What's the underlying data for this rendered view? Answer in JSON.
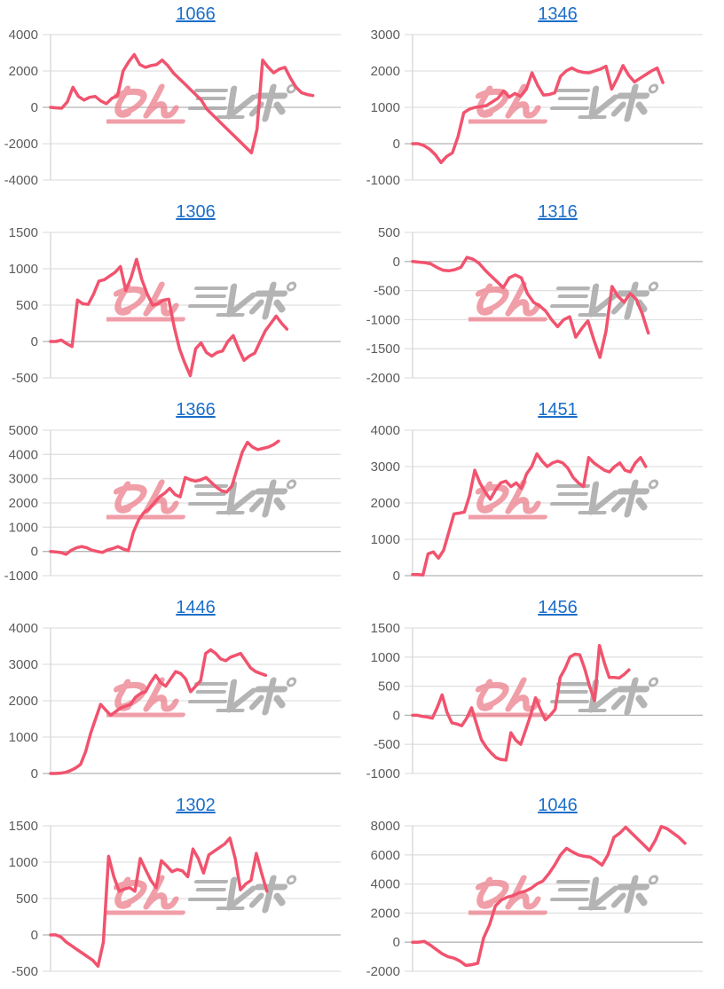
{
  "page": {
    "background": "#ffffff"
  },
  "watermark": {
    "pink_text": "みん",
    "gray_text": "レポ",
    "pink_color": "#ec8490",
    "gray_color": "#a8a8a8"
  },
  "colors": {
    "series_line": "#f1536e",
    "gridline": "#e0e0e0",
    "zero_line": "#b5b5b5",
    "y_axis_line": "#d6d6d6",
    "tick_label": "#5c5c5c",
    "title_link": "#1b6ec9"
  },
  "chart_data": [
    {
      "type": "line",
      "title": "1066",
      "ylabel": "",
      "ylim": [
        -4000,
        4000
      ],
      "yticks": [
        4000,
        2000,
        0,
        -2000,
        -4000
      ],
      "grid": true,
      "legend": "none",
      "x_count": 53,
      "values": [
        0,
        -30,
        -50,
        300,
        1100,
        600,
        400,
        550,
        600,
        350,
        200,
        500,
        650,
        2000,
        2500,
        2900,
        2350,
        2200,
        2300,
        2350,
        2600,
        2300,
        1900,
        1600,
        1300,
        1000,
        700,
        400,
        -100,
        -400,
        -700,
        -1000,
        -1300,
        -1600,
        -1900,
        -2200,
        -2500,
        -1200,
        2600,
        2200,
        1900,
        2100,
        2200,
        1600,
        1100,
        800,
        700,
        650
      ]
    },
    {
      "type": "line",
      "title": "1346",
      "ylabel": "",
      "ylim": [
        -1000,
        3000
      ],
      "yticks": [
        3000,
        2000,
        1000,
        0,
        -1000
      ],
      "grid": true,
      "legend": "none",
      "x_count": 52,
      "values": [
        0,
        0,
        -50,
        -150,
        -300,
        -520,
        -350,
        -250,
        200,
        850,
        950,
        1000,
        1020,
        1050,
        1150,
        1250,
        1450,
        1280,
        1380,
        1300,
        1500,
        1950,
        1600,
        1340,
        1350,
        1400,
        1850,
        2000,
        2080,
        2000,
        1960,
        1950,
        2000,
        2050,
        2130,
        1500,
        1800,
        2150,
        1880,
        1700,
        1800,
        1900,
        2000,
        2080,
        1680
      ]
    },
    {
      "type": "line",
      "title": "1306",
      "ylabel": "",
      "ylim": [
        -500,
        1500
      ],
      "yticks": [
        1500,
        1000,
        500,
        0,
        -500
      ],
      "grid": true,
      "legend": "none",
      "x_count": 55,
      "values": [
        0,
        0,
        20,
        -30,
        -70,
        570,
        520,
        510,
        650,
        830,
        850,
        900,
        950,
        1030,
        700,
        880,
        1130,
        850,
        650,
        500,
        520,
        570,
        580,
        200,
        -100,
        -300,
        -470,
        -100,
        -20,
        -150,
        -200,
        -150,
        -130,
        0,
        80,
        -100,
        -260,
        -200,
        -160,
        0,
        150,
        250,
        350,
        250,
        170
      ]
    },
    {
      "type": "line",
      "title": "1316",
      "ylabel": "",
      "ylim": [
        -2000,
        500
      ],
      "yticks": [
        500,
        0,
        -500,
        -1000,
        -1500,
        -2000
      ],
      "grid": true,
      "legend": "none",
      "x_count": 49,
      "values": [
        0,
        -10,
        -20,
        -40,
        -100,
        -150,
        -160,
        -140,
        -100,
        70,
        40,
        -30,
        -150,
        -250,
        -350,
        -450,
        -280,
        -230,
        -280,
        -550,
        -700,
        -760,
        -850,
        -1000,
        -1120,
        -1000,
        -950,
        -1300,
        -1150,
        -1020,
        -1350,
        -1650,
        -1200,
        -430,
        -600,
        -700,
        -550,
        -650,
        -900,
        -1230
      ]
    },
    {
      "type": "line",
      "title": "1366",
      "ylabel": "",
      "ylim": [
        -1000,
        5000
      ],
      "yticks": [
        5000,
        4000,
        3000,
        2000,
        1000,
        0,
        -1000
      ],
      "grid": true,
      "legend": "none",
      "x_count": 57,
      "values": [
        0,
        -20,
        -50,
        -120,
        50,
        150,
        200,
        150,
        50,
        0,
        -40,
        60,
        120,
        200,
        100,
        30,
        800,
        1300,
        1600,
        1750,
        2000,
        2250,
        2400,
        2600,
        2350,
        2250,
        3050,
        2950,
        2900,
        2950,
        3050,
        2850,
        2650,
        2500,
        2450,
        2700,
        3400,
        4100,
        4500,
        4300,
        4200,
        4250,
        4300,
        4400,
        4550
      ]
    },
    {
      "type": "line",
      "title": "1451",
      "ylabel": "",
      "ylim": [
        0,
        4000
      ],
      "yticks": [
        4000,
        3000,
        2000,
        1000,
        0
      ],
      "grid": true,
      "legend": "none",
      "x_count": 57,
      "values": [
        30,
        30,
        20,
        600,
        650,
        480,
        700,
        1200,
        1700,
        1720,
        1750,
        2200,
        2900,
        2550,
        2300,
        2100,
        2350,
        2550,
        2600,
        2450,
        2550,
        2400,
        2800,
        3000,
        3350,
        3150,
        3000,
        3100,
        3150,
        3100,
        2950,
        2700,
        2550,
        2450,
        3250,
        3100,
        3000,
        2900,
        2850,
        3000,
        3100,
        2900,
        2850,
        3100,
        3250,
        3000
      ]
    },
    {
      "type": "line",
      "title": "1446",
      "ylabel": "",
      "ylim": [
        0,
        4000
      ],
      "yticks": [
        4000,
        3000,
        2000,
        1000,
        0
      ],
      "grid": true,
      "legend": "none",
      "x_count": 59,
      "values": [
        0,
        0,
        10,
        30,
        80,
        150,
        250,
        600,
        1100,
        1500,
        1900,
        1750,
        1600,
        1700,
        1800,
        1850,
        1900,
        2100,
        2200,
        2250,
        2500,
        2700,
        2500,
        2400,
        2600,
        2800,
        2750,
        2600,
        2250,
        2400,
        2550,
        3300,
        3400,
        3300,
        3150,
        3100,
        3200,
        3250,
        3300,
        3100,
        2900,
        2800,
        2750,
        2700
      ]
    },
    {
      "type": "line",
      "title": "1456",
      "ylabel": "",
      "ylim": [
        -1000,
        1500
      ],
      "yticks": [
        1500,
        1000,
        500,
        0,
        -500,
        -1000
      ],
      "grid": true,
      "legend": "none",
      "x_count": 60,
      "values": [
        0,
        0,
        -20,
        -30,
        -50,
        130,
        350,
        50,
        -130,
        -150,
        -180,
        -50,
        130,
        -150,
        -420,
        -550,
        -650,
        -730,
        -760,
        -770,
        -300,
        -430,
        -500,
        -250,
        0,
        300,
        100,
        -80,
        0,
        100,
        650,
        800,
        1000,
        1050,
        1040,
        800,
        500,
        250,
        1200,
        900,
        650,
        650,
        640,
        700,
        780
      ]
    },
    {
      "type": "line",
      "title": "1302",
      "ylabel": "",
      "ylim": [
        -500,
        1500
      ],
      "yticks": [
        1500,
        1000,
        500,
        0,
        -500
      ],
      "grid": true,
      "legend": "none",
      "x_count": 56,
      "values": [
        0,
        0,
        -30,
        -100,
        -150,
        -200,
        -250,
        -300,
        -350,
        -430,
        -100,
        1080,
        800,
        600,
        630,
        650,
        600,
        1050,
        900,
        750,
        650,
        1020,
        950,
        870,
        900,
        880,
        800,
        1180,
        1050,
        850,
        1100,
        1150,
        1200,
        1250,
        1330,
        1050,
        620,
        700,
        750,
        1120,
        850,
        600
      ]
    },
    {
      "type": "line",
      "title": "1046",
      "ylabel": "",
      "ylim": [
        -2000,
        8000
      ],
      "yticks": [
        8000,
        6000,
        4000,
        2000,
        0,
        -2000
      ],
      "grid": true,
      "legend": "none",
      "x_count": 50,
      "values": [
        0,
        0,
        50,
        -200,
        -500,
        -800,
        -1000,
        -1100,
        -1300,
        -1600,
        -1550,
        -1450,
        300,
        1200,
        2500,
        2900,
        3100,
        3200,
        3400,
        3500,
        3700,
        4000,
        4200,
        4700,
        5300,
        6000,
        6450,
        6200,
        6000,
        5900,
        5850,
        5600,
        5300,
        6000,
        7200,
        7500,
        7900,
        7500,
        7100,
        6700,
        6300,
        7000,
        7950,
        7800,
        7500,
        7200,
        6800
      ]
    }
  ]
}
